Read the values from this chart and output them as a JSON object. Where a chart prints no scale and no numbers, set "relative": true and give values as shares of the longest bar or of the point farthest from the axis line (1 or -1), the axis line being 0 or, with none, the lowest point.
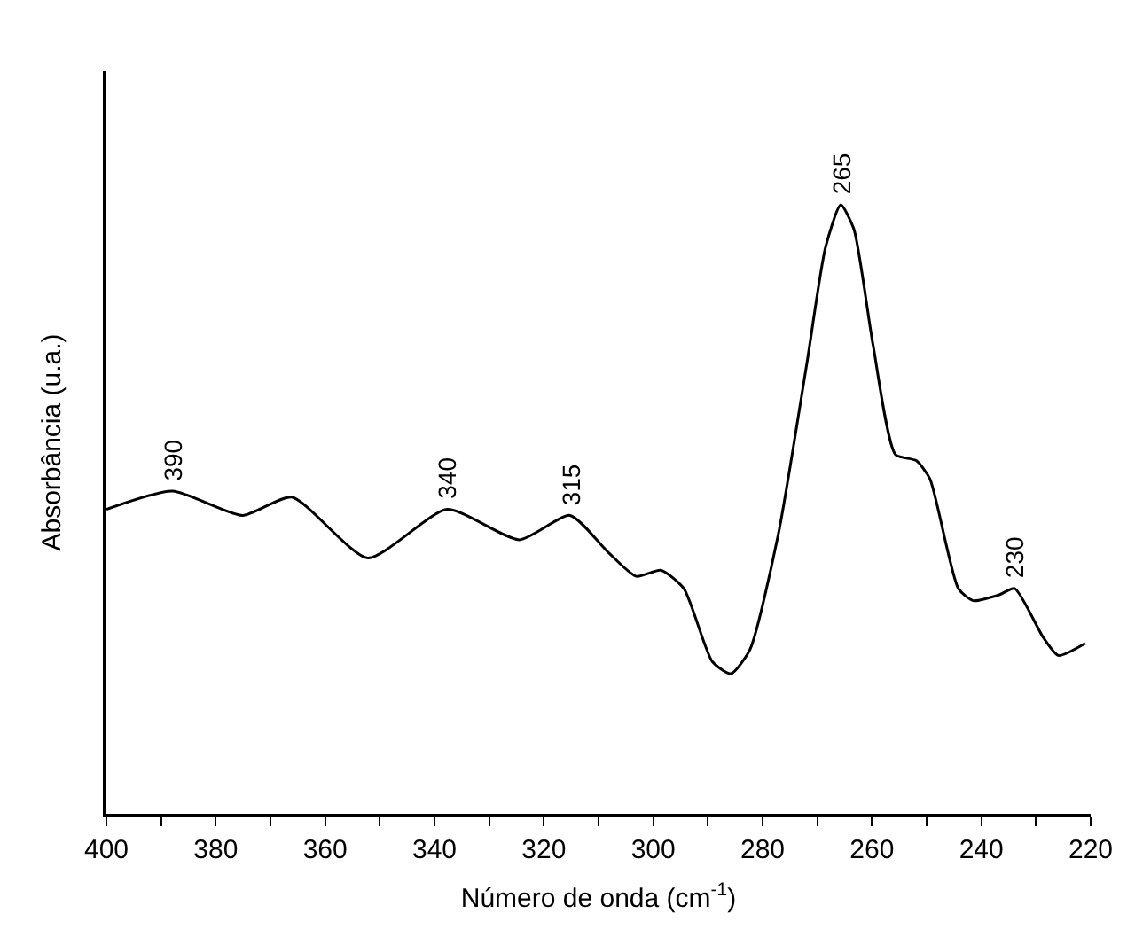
{
  "chart_data": {
    "type": "line",
    "relative": true,
    "xlabel": "Número de onda (cm$^{-1}$)",
    "ylabel": "Absorbância (u.a.)",
    "xlim": [
      400,
      220
    ],
    "xticks": [
      400,
      {
        "value": 390,
        "label": null
      },
      380,
      {
        "value": 370,
        "label": null
      },
      360,
      {
        "value": 350,
        "label": null
      },
      340,
      {
        "value": 330,
        "label": null
      },
      320,
      {
        "value": 310,
        "label": null
      },
      300,
      {
        "value": 290,
        "label": null
      },
      280,
      {
        "value": 270,
        "label": null
      },
      260,
      {
        "value": 250,
        "label": null
      },
      240,
      {
        "value": 230,
        "label": null
      },
      220
    ],
    "tick_labels": "x",
    "marker": "none",
    "line_style": "solid",
    "series": [
      {
        "color": "#000000",
        "x": [
          400,
          387.9,
          375.1,
          366.1,
          352.2,
          337.7,
          324.5,
          315.2,
          308.3,
          303.1,
          298.6,
          294.4,
          289.2,
          285.8,
          282.3,
          277.1,
          271.9,
          268.5,
          265.7,
          263.3,
          259.8,
          255.7,
          251.9,
          249.4,
          244.2,
          241.5,
          236.6,
          233.9,
          228.7,
          225.9,
          221.0
        ],
        "values": [
          0.5,
          0.53,
          0.49,
          0.52,
          0.42,
          0.5,
          0.45,
          0.49,
          0.43,
          0.39,
          0.4,
          0.37,
          0.25,
          0.23,
          0.27,
          0.46,
          0.74,
          0.93,
          1.0,
          0.96,
          0.77,
          0.59,
          0.58,
          0.55,
          0.37,
          0.35,
          0.36,
          0.37,
          0.29,
          0.26,
          0.28
        ]
      }
    ],
    "annotations": [
      {
        "text": "390",
        "x": 387.9,
        "y": 0.53
      },
      {
        "text": "340",
        "x": 337.7,
        "y": 0.5
      },
      {
        "text": "315",
        "x": 315.2,
        "y": 0.49
      },
      {
        "text": "265",
        "x": 265.7,
        "y": 1.0
      },
      {
        "text": "230",
        "x": 233.9,
        "y": 0.37
      }
    ]
  }
}
